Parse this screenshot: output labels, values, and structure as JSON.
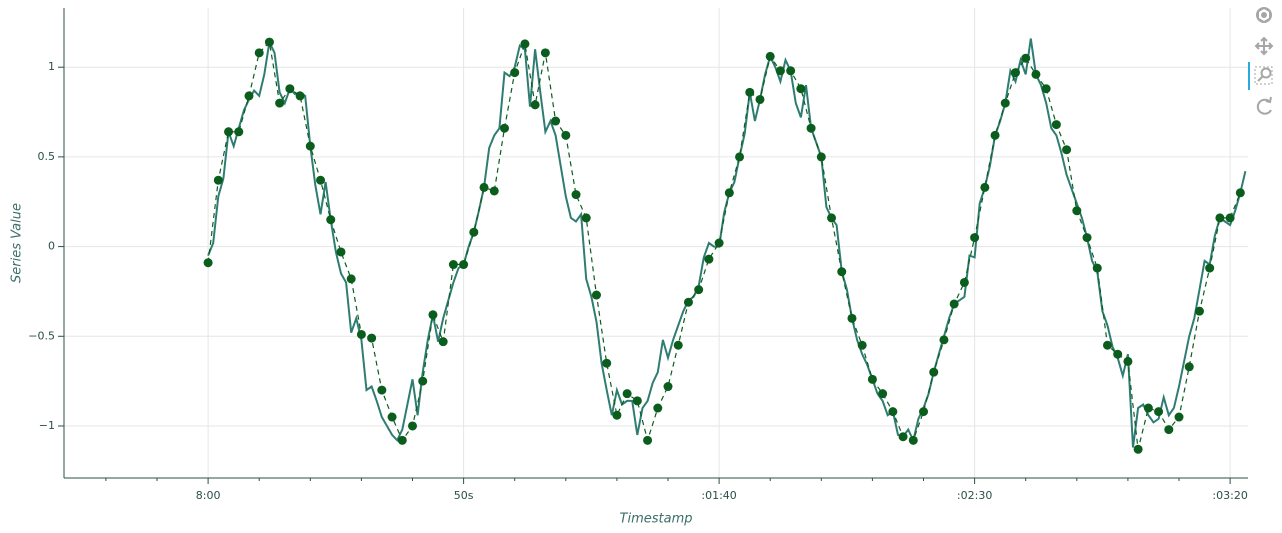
{
  "chart_data": {
    "type": "line",
    "xlabel": "Timestamp",
    "ylabel": "Series Value",
    "xlim": [
      -28.2,
      203.5
    ],
    "ylim": [
      -1.29,
      1.33
    ],
    "xticks": [
      {
        "value": 0,
        "label": "8:00"
      },
      {
        "value": 50,
        "label": "50s"
      },
      {
        "value": 100,
        "label": ":01:40"
      },
      {
        "value": 150,
        "label": ":02:30"
      },
      {
        "value": 200,
        "label": ":03:20"
      }
    ],
    "xminorticks": [
      -20,
      -10,
      10,
      20,
      30,
      40,
      60,
      70,
      80,
      90,
      110,
      120,
      130,
      140,
      160,
      170,
      180,
      190
    ],
    "yticks": [
      {
        "value": -1,
        "label": "−1"
      },
      {
        "value": -0.5,
        "label": "−0.5"
      },
      0,
      0.5,
      1
    ],
    "grid": true,
    "series": [
      {
        "color": "#2f7d72",
        "x": [
          0,
          1,
          2,
          3,
          4,
          5,
          6,
          7,
          8,
          9,
          10,
          11,
          12,
          13,
          14,
          15,
          16,
          17,
          18,
          19,
          20,
          21,
          22,
          23,
          24,
          25,
          26,
          27,
          28,
          29,
          30,
          31,
          32,
          33,
          34,
          35,
          36,
          37,
          38,
          39,
          40,
          41,
          42,
          43,
          44,
          45,
          46,
          47,
          48,
          49,
          50,
          51,
          52,
          53,
          54,
          55,
          56,
          57,
          58,
          59,
          60,
          61,
          62,
          63,
          64,
          65,
          66,
          67,
          68,
          69,
          70,
          71,
          72,
          73,
          74,
          75,
          76,
          77,
          78,
          79,
          80,
          81,
          82,
          83,
          84,
          85,
          86,
          87,
          88,
          89,
          90,
          91,
          92,
          93,
          94,
          95,
          96,
          97,
          98,
          99,
          100,
          101,
          102,
          103,
          104,
          105,
          106,
          107,
          108,
          109,
          110,
          111,
          112,
          113,
          114,
          115,
          116,
          117,
          118,
          119,
          120,
          121,
          122,
          123,
          124,
          125,
          126,
          127,
          128,
          129,
          130,
          131,
          132,
          133,
          134,
          135,
          136,
          137,
          138,
          139,
          140,
          141,
          142,
          143,
          144,
          145,
          146,
          147,
          148,
          149,
          150,
          151,
          152,
          153,
          154,
          155,
          156,
          157,
          158,
          159,
          160,
          161,
          162,
          163,
          164,
          165,
          166,
          167,
          168,
          169,
          170,
          171,
          172,
          173,
          174,
          175,
          176,
          177,
          178,
          179,
          180,
          181,
          182,
          183,
          184,
          185,
          186,
          187,
          188,
          189,
          190,
          191,
          192,
          193,
          194,
          195,
          196,
          197,
          198,
          199,
          200,
          201,
          202,
          203
        ],
        "values": [
          -0.05,
          0.02,
          0.28,
          0.38,
          0.64,
          0.56,
          0.66,
          0.76,
          0.82,
          0.87,
          0.84,
          0.96,
          1.14,
          1.08,
          0.86,
          0.8,
          0.88,
          0.85,
          0.86,
          0.84,
          0.56,
          0.34,
          0.18,
          0.36,
          0.15,
          -0.03,
          -0.15,
          -0.2,
          -0.48,
          -0.4,
          -0.52,
          -0.8,
          -0.78,
          -0.86,
          -0.95,
          -1.0,
          -1.05,
          -1.08,
          -1.02,
          -0.88,
          -0.74,
          -0.94,
          -0.7,
          -0.52,
          -0.38,
          -0.53,
          -0.4,
          -0.3,
          -0.2,
          -0.12,
          -0.1,
          0.0,
          0.08,
          0.2,
          0.33,
          0.55,
          0.62,
          0.66,
          0.97,
          0.95,
          1.0,
          1.12,
          1.1,
          0.78,
          1.1,
          0.86,
          0.64,
          0.7,
          0.62,
          0.45,
          0.28,
          0.16,
          0.14,
          0.18,
          -0.18,
          -0.28,
          -0.42,
          -0.65,
          -0.8,
          -0.94,
          -0.8,
          -0.88,
          -0.86,
          -0.86,
          -1.05,
          -0.9,
          -0.86,
          -0.76,
          -0.7,
          -0.52,
          -0.62,
          -0.52,
          -0.44,
          -0.36,
          -0.3,
          -0.28,
          -0.22,
          -0.06,
          0.02,
          0.0,
          0.0,
          0.19,
          0.3,
          0.36,
          0.5,
          0.63,
          0.86,
          0.7,
          0.82,
          0.96,
          1.06,
          1.0,
          0.92,
          1.04,
          0.98,
          0.8,
          0.72,
          0.9,
          0.66,
          0.58,
          0.5,
          0.22,
          0.16,
          0.12,
          -0.14,
          -0.24,
          -0.4,
          -0.52,
          -0.6,
          -0.66,
          -0.74,
          -0.82,
          -0.86,
          -0.94,
          -0.92,
          -1.05,
          -1.06,
          -1.02,
          -1.08,
          -0.96,
          -0.9,
          -0.82,
          -0.7,
          -0.6,
          -0.5,
          -0.4,
          -0.32,
          -0.3,
          -0.28,
          -0.05,
          -0.06,
          0.24,
          0.33,
          0.45,
          0.62,
          0.7,
          0.8,
          0.98,
          0.92,
          1.04,
          0.96,
          1.16,
          0.96,
          0.9,
          0.8,
          0.66,
          0.62,
          0.52,
          0.4,
          0.32,
          0.24,
          0.16,
          0.05,
          -0.08,
          -0.14,
          -0.36,
          -0.44,
          -0.56,
          -0.62,
          -0.72,
          -0.6,
          -1.12,
          -0.9,
          -0.88,
          -0.94,
          -0.98,
          -0.96,
          -0.84,
          -0.94,
          -0.9,
          -0.78,
          -0.64,
          -0.5,
          -0.4,
          -0.24,
          -0.08,
          -0.1,
          0.06,
          0.16,
          0.14,
          0.12,
          0.2,
          0.3,
          0.42
        ]
      },
      {
        "color": "#0b5d1e",
        "dash": true,
        "markers": true,
        "x": [
          0,
          2,
          4,
          6,
          8,
          10,
          12,
          14,
          16,
          18,
          20,
          22,
          24,
          26,
          28,
          30,
          32,
          34,
          36,
          38,
          40,
          42,
          44,
          46,
          48,
          50,
          52,
          54,
          56,
          58,
          60,
          62,
          64,
          66,
          68,
          70,
          72,
          74,
          76,
          78,
          80,
          82,
          84,
          86,
          88,
          90,
          92,
          94,
          96,
          98,
          100,
          102,
          104,
          106,
          108,
          110,
          112,
          114,
          116,
          118,
          120,
          122,
          124,
          126,
          128,
          130,
          132,
          134,
          136,
          138,
          140,
          142,
          144,
          146,
          148,
          150,
          152,
          154,
          156,
          158,
          160,
          162,
          164,
          166,
          168,
          170,
          172,
          174,
          176,
          178,
          180,
          182,
          184,
          186,
          188,
          190,
          192,
          194,
          196,
          198,
          200,
          202
        ],
        "values": [
          -0.09,
          0.37,
          0.64,
          0.64,
          0.84,
          1.08,
          1.14,
          0.8,
          0.88,
          0.84,
          0.56,
          0.37,
          0.15,
          -0.03,
          -0.18,
          -0.49,
          -0.51,
          -0.8,
          -0.95,
          -1.08,
          -1.0,
          -0.75,
          -0.38,
          -0.53,
          -0.1,
          -0.1,
          0.08,
          0.33,
          0.31,
          0.66,
          0.97,
          1.13,
          0.79,
          1.08,
          0.7,
          0.62,
          0.29,
          0.16,
          -0.27,
          -0.65,
          -0.94,
          -0.82,
          -0.86,
          -1.08,
          -0.9,
          -0.78,
          -0.55,
          -0.31,
          -0.24,
          -0.07,
          0.02,
          0.3,
          0.5,
          0.86,
          0.82,
          1.06,
          0.98,
          0.98,
          0.88,
          0.66,
          0.5,
          0.16,
          -0.14,
          -0.4,
          -0.55,
          -0.74,
          -0.82,
          -0.92,
          -1.06,
          -1.08,
          -0.92,
          -0.7,
          -0.52,
          -0.32,
          -0.2,
          0.05,
          0.33,
          0.62,
          0.8,
          0.97,
          1.05,
          0.96,
          0.88,
          0.68,
          0.54,
          0.2,
          0.05,
          -0.12,
          -0.55,
          -0.6,
          -0.64,
          -1.13,
          -0.9,
          -0.92,
          -1.02,
          -0.95,
          -0.67,
          -0.36,
          -0.12,
          0.16,
          0.16,
          0.3
        ]
      }
    ]
  }
}
